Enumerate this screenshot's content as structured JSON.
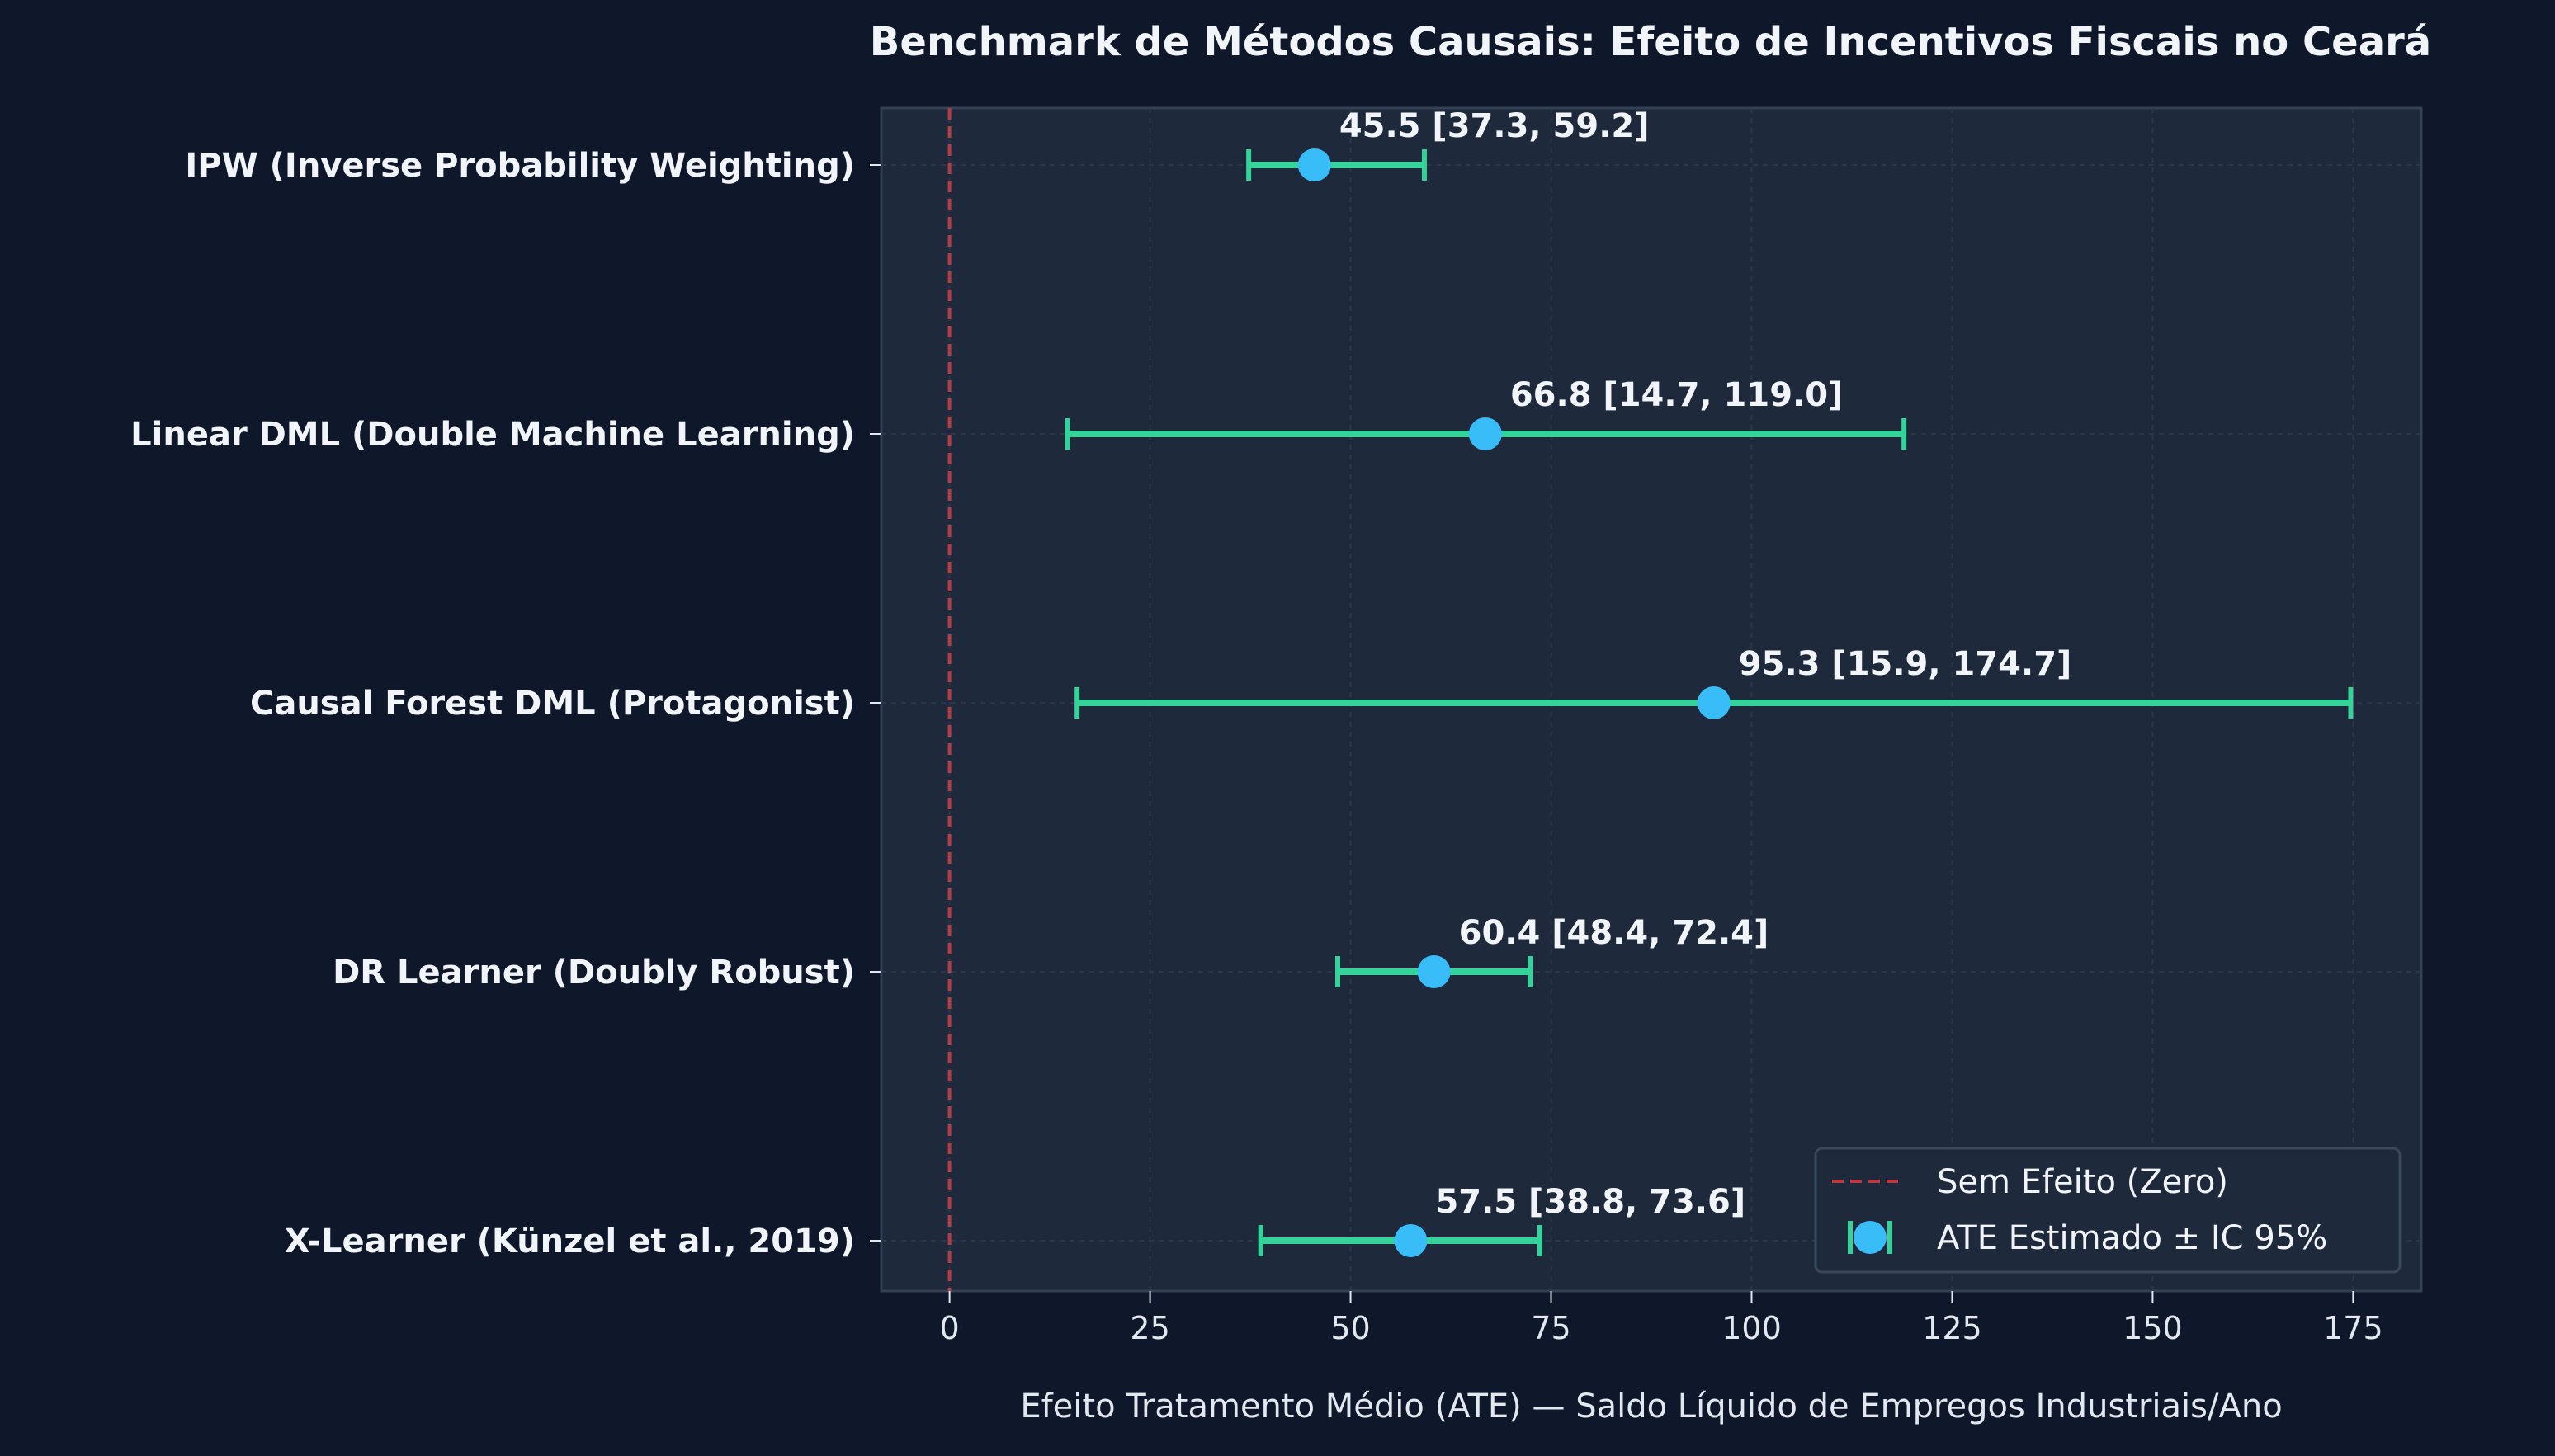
{
  "chart_data": {
    "type": "errorbar",
    "orientation": "horizontal",
    "title": "Benchmark de Métodos Causais: Efeito de Incentivos Fiscais no Ceará",
    "xlabel": "Efeito Tratamento Médio (ATE) — Saldo Líquido de Empregos Industriais/Ano",
    "ylabel": "",
    "xlim": [
      -8.5,
      183.5
    ],
    "xticks": [
      0,
      25,
      50,
      75,
      100,
      125,
      150,
      175
    ],
    "grid": true,
    "legend_position": "lower-right",
    "reference_line": {
      "x": 0,
      "style": "dashed",
      "label": "Sem Efeito (Zero)"
    },
    "series": [
      {
        "name": "ATE Estimado ± IC 95%",
        "points": [
          {
            "method": "IPW (Inverse Probability Weighting)",
            "ate": 45.5,
            "ci_low": 37.3,
            "ci_high": 59.2,
            "annotation": "45.5 [37.3, 59.2]"
          },
          {
            "method": "Linear DML (Double Machine Learning)",
            "ate": 66.8,
            "ci_low": 14.7,
            "ci_high": 119.0,
            "annotation": "66.8 [14.7, 119.0]"
          },
          {
            "method": "Causal Forest DML (Protagonist)",
            "ate": 95.3,
            "ci_low": 15.9,
            "ci_high": 174.7,
            "annotation": "95.3 [15.9, 174.7]"
          },
          {
            "method": "DR Learner (Doubly Robust)",
            "ate": 60.4,
            "ci_low": 48.4,
            "ci_high": 72.4,
            "annotation": "60.4 [48.4, 72.4]"
          },
          {
            "method": "X-Learner (Künzel et al., 2019)",
            "ate": 57.5,
            "ci_low": 38.8,
            "ci_high": 73.6,
            "annotation": "57.5 [38.8, 73.6]"
          }
        ]
      }
    ]
  },
  "colors": {
    "background": "#0f172a",
    "plot_background": "#1e293b",
    "plot_border": "#334155",
    "grid": "#2c3a4f",
    "reference_line": "#b83a45",
    "errorbar": "#34d399",
    "marker": "#38bdf8",
    "text": "#f1f5f9",
    "tick_text": "#e2e8f0",
    "legend_background": "#1e293b",
    "legend_border": "#3b4a5f"
  }
}
